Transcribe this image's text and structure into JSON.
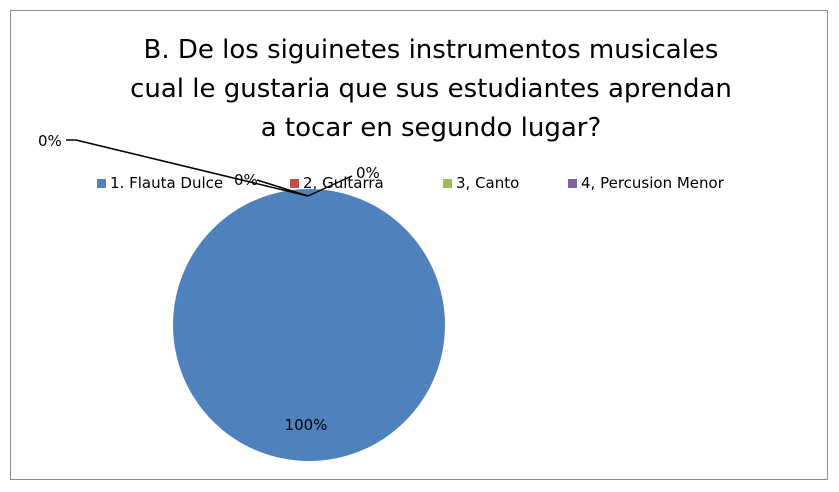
{
  "chart_data": {
    "type": "pie",
    "title_lines": [
      "B. De los siguinetes instrumentos musicales",
      "cual le gustaria que sus estudiantes aprendan",
      "a tocar en segundo lugar?"
    ],
    "categories": [
      "1. Flauta Dulce",
      "2, Guitarra",
      "3, Canto",
      "4, Percusion Menor"
    ],
    "values": [
      100,
      0,
      0,
      0
    ],
    "data_labels": [
      "100%",
      "0%",
      "0%",
      "0%"
    ],
    "colors": [
      "#4f81bd",
      "#c0504d",
      "#9bbb59",
      "#8064a2"
    ],
    "legend_position": "top"
  }
}
